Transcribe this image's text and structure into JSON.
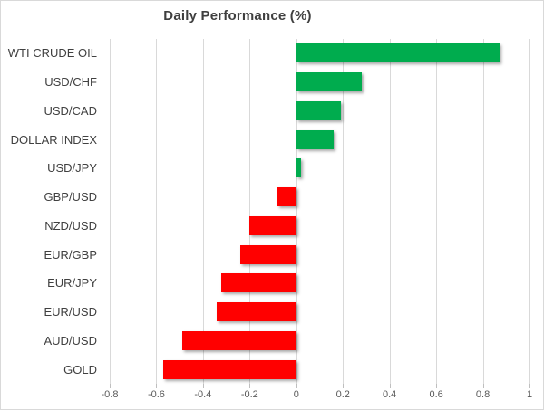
{
  "chart_data": {
    "type": "bar",
    "orientation": "horizontal",
    "title": "Daily Performance (%)",
    "categories": [
      "WTI CRUDE OIL",
      "USD/CHF",
      "USD/CAD",
      "DOLLAR INDEX",
      "USD/JPY",
      "GBP/USD",
      "NZD/USD",
      "EUR/GBP",
      "EUR/JPY",
      "EUR/USD",
      "AUD/USD",
      "GOLD"
    ],
    "values": [
      0.87,
      0.28,
      0.19,
      0.16,
      0.02,
      -0.08,
      -0.2,
      -0.24,
      -0.32,
      -0.34,
      -0.49,
      -0.57
    ],
    "xlabel": "",
    "ylabel": "",
    "xlim": [
      -0.8,
      1.0
    ],
    "xticks": [
      -0.8,
      -0.6,
      -0.4,
      -0.2,
      0,
      0.2,
      0.4,
      0.6,
      0.8,
      1
    ],
    "xtick_labels": [
      "-0.8",
      "-0.6",
      "-0.4",
      "-0.2",
      "0",
      "0.2",
      "0.4",
      "0.6",
      "0.8",
      "1"
    ],
    "grid": "vertical",
    "legend": "none",
    "colors": {
      "positive": "#00ac4e",
      "negative": "#ff0000",
      "gridline": "#d9d9d9",
      "title_text": "#3f3f3f",
      "category_text": "#404040",
      "tick_text": "#595959"
    }
  }
}
